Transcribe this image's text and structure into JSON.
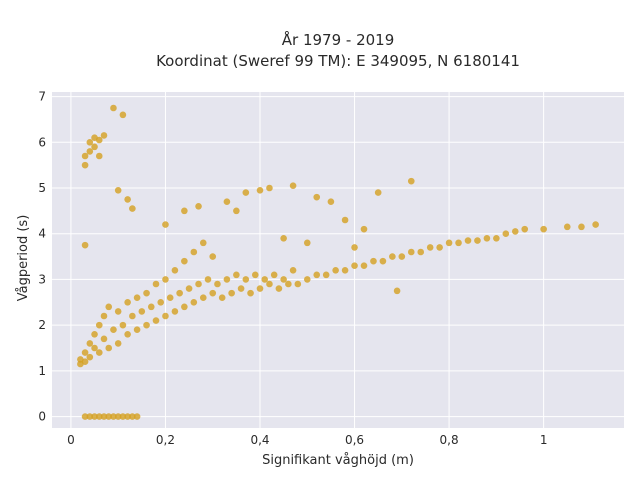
{
  "chart_data": {
    "type": "scatter",
    "title": "År 1979 - 2019",
    "subtitle": "Koordinat (Sweref 99 TM): E 349095, N 6180141",
    "xlabel": "Signifikant våghöjd (m)",
    "ylabel": "Vågperiod (s)",
    "xlim": [
      -0.04,
      1.17
    ],
    "ylim": [
      -0.25,
      7.1
    ],
    "xticks": [
      0,
      0.2,
      0.4,
      0.6,
      0.8,
      1
    ],
    "xtick_labels": [
      "0",
      "0,2",
      "0,4",
      "0,6",
      "0,8",
      "1"
    ],
    "yticks": [
      0,
      1,
      2,
      3,
      4,
      5,
      6,
      7
    ],
    "ytick_labels": [
      "0",
      "1",
      "2",
      "3",
      "4",
      "5",
      "6",
      "7"
    ],
    "grid": true,
    "marker_color": "#D4A020",
    "background_color": "#E5E5EE",
    "points": [
      [
        0.03,
        0
      ],
      [
        0.04,
        0
      ],
      [
        0.05,
        0
      ],
      [
        0.06,
        0
      ],
      [
        0.07,
        0
      ],
      [
        0.08,
        0
      ],
      [
        0.09,
        0
      ],
      [
        0.1,
        0
      ],
      [
        0.11,
        0
      ],
      [
        0.12,
        0
      ],
      [
        0.13,
        0
      ],
      [
        0.14,
        0
      ],
      [
        0.02,
        1.15
      ],
      [
        0.02,
        1.25
      ],
      [
        0.03,
        1.2
      ],
      [
        0.03,
        1.4
      ],
      [
        0.04,
        1.3
      ],
      [
        0.04,
        1.6
      ],
      [
        0.05,
        1.5
      ],
      [
        0.05,
        1.8
      ],
      [
        0.06,
        1.4
      ],
      [
        0.06,
        2.0
      ],
      [
        0.07,
        1.7
      ],
      [
        0.07,
        2.2
      ],
      [
        0.08,
        1.5
      ],
      [
        0.08,
        2.4
      ],
      [
        0.09,
        1.9
      ],
      [
        0.1,
        1.6
      ],
      [
        0.1,
        2.3
      ],
      [
        0.11,
        2.0
      ],
      [
        0.12,
        1.8
      ],
      [
        0.12,
        2.5
      ],
      [
        0.13,
        2.2
      ],
      [
        0.14,
        1.9
      ],
      [
        0.14,
        2.6
      ],
      [
        0.15,
        2.3
      ],
      [
        0.16,
        2.0
      ],
      [
        0.16,
        2.7
      ],
      [
        0.17,
        2.4
      ],
      [
        0.18,
        2.1
      ],
      [
        0.18,
        2.9
      ],
      [
        0.19,
        2.5
      ],
      [
        0.2,
        2.2
      ],
      [
        0.2,
        3.0
      ],
      [
        0.21,
        2.6
      ],
      [
        0.22,
        2.3
      ],
      [
        0.22,
        3.2
      ],
      [
        0.23,
        2.7
      ],
      [
        0.24,
        2.4
      ],
      [
        0.24,
        3.4
      ],
      [
        0.25,
        2.8
      ],
      [
        0.26,
        2.5
      ],
      [
        0.26,
        3.6
      ],
      [
        0.27,
        2.9
      ],
      [
        0.28,
        2.6
      ],
      [
        0.28,
        3.8
      ],
      [
        0.29,
        3.0
      ],
      [
        0.3,
        2.7
      ],
      [
        0.3,
        3.5
      ],
      [
        0.31,
        2.9
      ],
      [
        0.32,
        2.6
      ],
      [
        0.33,
        3.0
      ],
      [
        0.34,
        2.7
      ],
      [
        0.35,
        3.1
      ],
      [
        0.36,
        2.8
      ],
      [
        0.37,
        3.0
      ],
      [
        0.38,
        2.7
      ],
      [
        0.39,
        3.1
      ],
      [
        0.4,
        2.8
      ],
      [
        0.41,
        3.0
      ],
      [
        0.42,
        2.9
      ],
      [
        0.43,
        3.1
      ],
      [
        0.44,
        2.8
      ],
      [
        0.45,
        3.0
      ],
      [
        0.46,
        2.9
      ],
      [
        0.47,
        3.2
      ],
      [
        0.48,
        2.9
      ],
      [
        0.5,
        3.0
      ],
      [
        0.52,
        3.1
      ],
      [
        0.54,
        3.1
      ],
      [
        0.56,
        3.2
      ],
      [
        0.58,
        3.2
      ],
      [
        0.6,
        3.3
      ],
      [
        0.62,
        3.3
      ],
      [
        0.64,
        3.4
      ],
      [
        0.66,
        3.4
      ],
      [
        0.68,
        3.5
      ],
      [
        0.7,
        3.5
      ],
      [
        0.72,
        3.6
      ],
      [
        0.74,
        3.6
      ],
      [
        0.76,
        3.7
      ],
      [
        0.78,
        3.7
      ],
      [
        0.8,
        3.8
      ],
      [
        0.82,
        3.8
      ],
      [
        0.84,
        3.85
      ],
      [
        0.86,
        3.85
      ],
      [
        0.88,
        3.9
      ],
      [
        0.9,
        3.9
      ],
      [
        0.92,
        4.0
      ],
      [
        0.94,
        4.05
      ],
      [
        0.96,
        4.1
      ],
      [
        1.0,
        4.1
      ],
      [
        1.05,
        4.15
      ],
      [
        1.08,
        4.15
      ],
      [
        1.11,
        4.2
      ],
      [
        0.03,
        5.5
      ],
      [
        0.03,
        5.7
      ],
      [
        0.04,
        5.8
      ],
      [
        0.04,
        6.0
      ],
      [
        0.05,
        5.9
      ],
      [
        0.05,
        6.1
      ],
      [
        0.06,
        5.7
      ],
      [
        0.06,
        6.05
      ],
      [
        0.07,
        6.15
      ],
      [
        0.09,
        6.75
      ],
      [
        0.1,
        4.95
      ],
      [
        0.11,
        6.6
      ],
      [
        0.12,
        4.75
      ],
      [
        0.13,
        4.55
      ],
      [
        0.03,
        3.75
      ],
      [
        0.2,
        4.2
      ],
      [
        0.24,
        4.5
      ],
      [
        0.27,
        4.6
      ],
      [
        0.33,
        4.7
      ],
      [
        0.35,
        4.5
      ],
      [
        0.37,
        4.9
      ],
      [
        0.4,
        4.95
      ],
      [
        0.42,
        5.0
      ],
      [
        0.47,
        5.05
      ],
      [
        0.52,
        4.8
      ],
      [
        0.55,
        4.7
      ],
      [
        0.58,
        4.3
      ],
      [
        0.65,
        4.9
      ],
      [
        0.72,
        5.15
      ],
      [
        0.69,
        2.75
      ],
      [
        0.45,
        3.9
      ],
      [
        0.5,
        3.8
      ],
      [
        0.6,
        3.7
      ],
      [
        0.62,
        4.1
      ]
    ]
  }
}
